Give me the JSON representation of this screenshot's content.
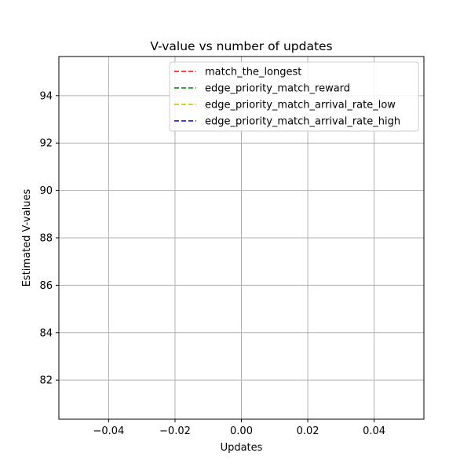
{
  "chart_data": {
    "type": "line",
    "title": "V-value vs number of updates",
    "xlabel": "Updates",
    "ylabel": "Estimated V-values",
    "xlim": [
      -0.055,
      0.055
    ],
    "ylim": [
      80.35,
      95.65
    ],
    "xticks": [
      -0.04,
      -0.02,
      0.0,
      0.02,
      0.04
    ],
    "xtick_labels": [
      "−0.04",
      "−0.02",
      "0.00",
      "0.02",
      "0.04"
    ],
    "yticks": [
      82,
      84,
      86,
      88,
      90,
      92,
      94
    ],
    "ytick_labels": [
      "82",
      "84",
      "86",
      "88",
      "90",
      "92",
      "94"
    ],
    "grid": true,
    "legend_position": "top-right",
    "series": [
      {
        "name": "match_the_longest",
        "color": "#ff0000",
        "style": "dashed",
        "x": [],
        "y": []
      },
      {
        "name": "edge_priority_match_reward",
        "color": "#008000",
        "style": "dashed",
        "x": [],
        "y": []
      },
      {
        "name": "edge_priority_match_arrival_rate_low",
        "color": "#bfbf00",
        "style": "dashed",
        "x": [],
        "y": []
      },
      {
        "name": "edge_priority_match_arrival_rate_high",
        "color": "#0000cc",
        "style": "dashed",
        "x": [],
        "y": []
      }
    ]
  }
}
